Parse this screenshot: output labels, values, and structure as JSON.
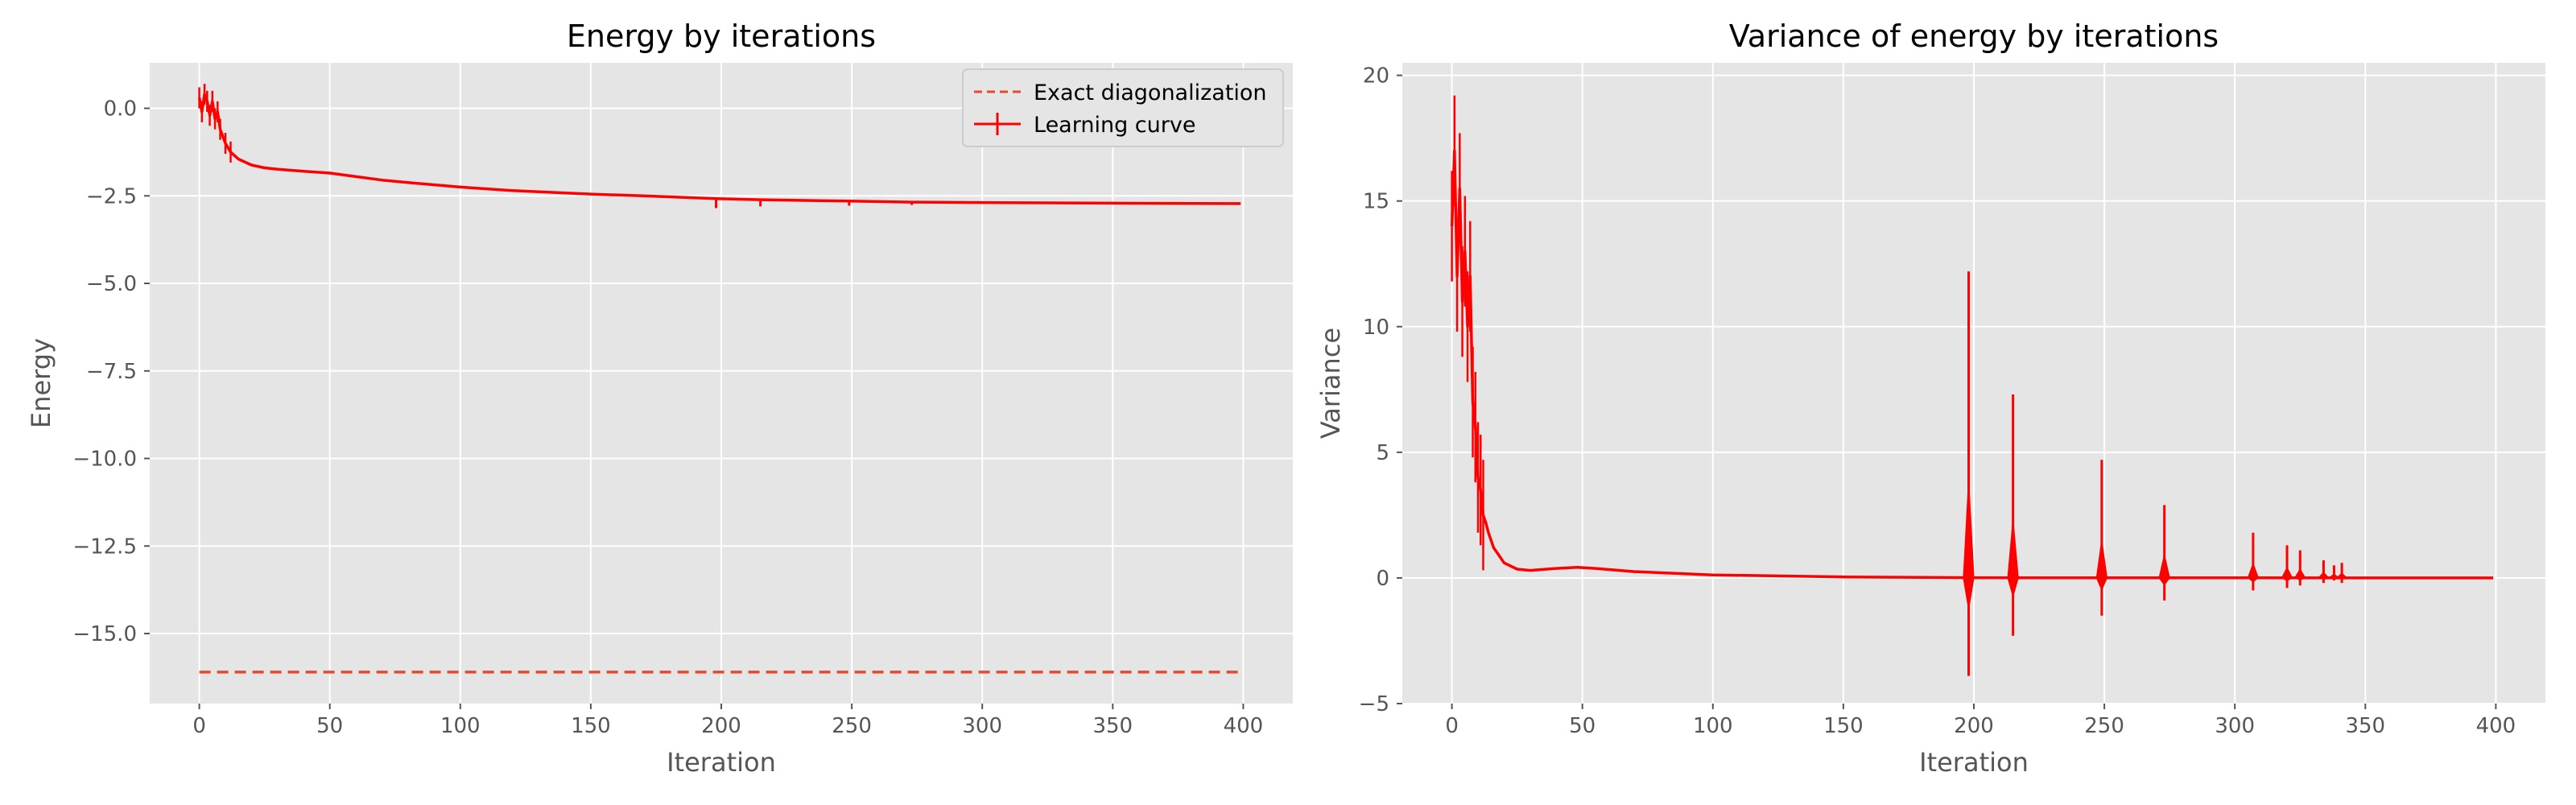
{
  "colors": {
    "background": "#ffffff",
    "axes_face": "#e5e5e5",
    "grid": "#ffffff",
    "series": "#ff0000",
    "exact_line": "#e24a33",
    "tick_text": "#555555",
    "legend_border": "#cccccc"
  },
  "chart_data": [
    {
      "type": "line",
      "title": "Energy by iterations",
      "xlabel": "Iteration",
      "ylabel": "Energy",
      "xlim": [
        -19,
        419
      ],
      "ylim": [
        -17.0,
        1.3
      ],
      "xticks": [
        0,
        50,
        100,
        150,
        200,
        250,
        300,
        350,
        400
      ],
      "yticks": [
        0.0,
        -2.5,
        -5.0,
        -7.5,
        -10.0,
        -12.5,
        -15.0
      ],
      "ytick_labels": [
        "0.0",
        "−2.5",
        "−5.0",
        "−7.5",
        "−10.0",
        "−12.5",
        "−15.0"
      ],
      "grid": true,
      "legend": {
        "position": "top-right",
        "entries": [
          "Exact diagonalization",
          "Learning curve"
        ]
      },
      "series": [
        {
          "name": "Exact diagonalization",
          "style": "dashed",
          "x": [
            0,
            399
          ],
          "y": [
            -16.1,
            -16.1
          ]
        },
        {
          "name": "Learning curve",
          "style": "solid-errorbar",
          "x": [
            0,
            1,
            2,
            3,
            4,
            5,
            6,
            7,
            8,
            10,
            12,
            15,
            20,
            25,
            30,
            40,
            50,
            60,
            70,
            80,
            100,
            120,
            150,
            170,
            198,
            215,
            249,
            273,
            300,
            350,
            399
          ],
          "y": [
            0.3,
            -0.1,
            0.4,
            0.2,
            -0.2,
            0.2,
            -0.3,
            -0.1,
            -0.6,
            -1.0,
            -1.25,
            -1.45,
            -1.62,
            -1.7,
            -1.74,
            -1.8,
            -1.85,
            -1.95,
            -2.05,
            -2.12,
            -2.25,
            -2.35,
            -2.45,
            -2.5,
            -2.58,
            -2.61,
            -2.65,
            -2.68,
            -2.69,
            -2.71,
            -2.72
          ],
          "spikes": [
            {
              "x": 198,
              "low": -2.85
            },
            {
              "x": 215,
              "low": -2.8
            },
            {
              "x": 249,
              "low": -2.78
            },
            {
              "x": 273,
              "low": -2.76
            }
          ]
        }
      ]
    },
    {
      "type": "line",
      "title": "Variance of energy by iterations",
      "xlabel": "Iteration",
      "ylabel": "Variance",
      "xlim": [
        -19,
        419
      ],
      "ylim": [
        -5,
        20.5
      ],
      "xticks": [
        0,
        50,
        100,
        150,
        200,
        250,
        300,
        350,
        400
      ],
      "yticks": [
        -5,
        0,
        5,
        10,
        15,
        20
      ],
      "ytick_labels": [
        "−5",
        "0",
        "5",
        "10",
        "15",
        "20"
      ],
      "grid": true,
      "series": [
        {
          "style": "solid-errorbar",
          "x": [
            0,
            1,
            2,
            3,
            4,
            5,
            6,
            7,
            8,
            9,
            10,
            11,
            12,
            13,
            14,
            15,
            16,
            18,
            20,
            25,
            30,
            40,
            48,
            55,
            70,
            100,
            150,
            200,
            250,
            300,
            350,
            399
          ],
          "y": [
            14,
            17,
            12,
            15.5,
            11,
            13,
            10,
            12,
            7,
            6,
            4,
            3.5,
            2.5,
            2.2,
            1.8,
            1.5,
            1.2,
            0.9,
            0.6,
            0.35,
            0.3,
            0.38,
            0.42,
            0.38,
            0.25,
            0.12,
            0.04,
            0.01,
            0.005,
            0.003,
            0.002,
            0.001
          ],
          "spikes": [
            {
              "x": 198,
              "high": 12.2,
              "low": -3.9
            },
            {
              "x": 215,
              "high": 7.3,
              "low": -2.3
            },
            {
              "x": 249,
              "high": 4.7,
              "low": -1.5
            },
            {
              "x": 273,
              "high": 2.9,
              "low": -0.9
            },
            {
              "x": 307,
              "high": 1.8,
              "low": -0.5
            },
            {
              "x": 320,
              "high": 1.3,
              "low": -0.4
            },
            {
              "x": 325,
              "high": 1.1,
              "low": -0.3
            },
            {
              "x": 334,
              "high": 0.7,
              "low": -0.2
            },
            {
              "x": 338,
              "high": 0.5,
              "low": -0.1
            },
            {
              "x": 341,
              "high": 0.6,
              "low": -0.2
            }
          ]
        }
      ]
    }
  ]
}
